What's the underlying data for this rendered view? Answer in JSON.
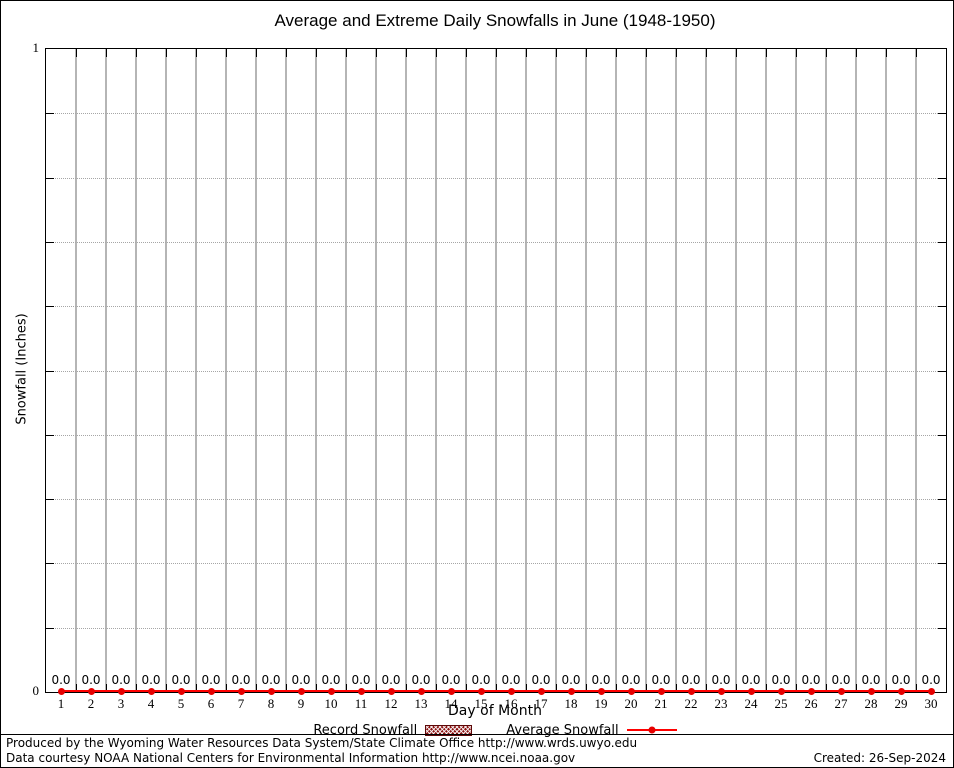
{
  "chart_data": {
    "type": "line",
    "title": "Average and Extreme Daily Snowfalls in June (1948-1950)",
    "xlabel": "Day of Month",
    "ylabel": "Snowfall (Inches)",
    "xlim": [
      0.5,
      30.5
    ],
    "ylim": [
      0,
      1
    ],
    "y_tick_interval": 0.1,
    "y_labeled_ticks": {
      "top": "1",
      "bottom": "0"
    },
    "grid": {
      "vertical": "solid gray lines at day boundaries",
      "horizontal": "dotted gray lines every 0.1"
    },
    "legend_position": "bottom-center",
    "categories": [
      1,
      2,
      3,
      4,
      5,
      6,
      7,
      8,
      9,
      10,
      11,
      12,
      13,
      14,
      15,
      16,
      17,
      18,
      19,
      20,
      21,
      22,
      23,
      24,
      25,
      26,
      27,
      28,
      29,
      30
    ],
    "series": [
      {
        "name": "Record Snowfall",
        "style": "hatched-boxes",
        "color": "#8b1111",
        "values": [
          0,
          0,
          0,
          0,
          0,
          0,
          0,
          0,
          0,
          0,
          0,
          0,
          0,
          0,
          0,
          0,
          0,
          0,
          0,
          0,
          0,
          0,
          0,
          0,
          0,
          0,
          0,
          0,
          0,
          0
        ]
      },
      {
        "name": "Average Snowfall",
        "style": "line-points",
        "color": "#ff0000",
        "values": [
          0,
          0,
          0,
          0,
          0,
          0,
          0,
          0,
          0,
          0,
          0,
          0,
          0,
          0,
          0,
          0,
          0,
          0,
          0,
          0,
          0,
          0,
          0,
          0,
          0,
          0,
          0,
          0,
          0,
          0
        ]
      }
    ],
    "value_labels": [
      "0.0",
      "0.0",
      "0.0",
      "0.0",
      "0.0",
      "0.0",
      "0.0",
      "0.0",
      "0.0",
      "0.0",
      "0.0",
      "0.0",
      "0.0",
      "0.0",
      "0.0",
      "0.0",
      "0.0",
      "0.0",
      "0.0",
      "0.0",
      "0.0",
      "0.0",
      "0.0",
      "0.0",
      "0.0",
      "0.0",
      "0.0",
      "0.0",
      "0.0",
      "0.0"
    ]
  },
  "legend": {
    "record_label": "Record Snowfall",
    "average_label": "Average Snowfall"
  },
  "footer": {
    "line1": "Produced by the Wyoming Water Resources Data System/State Climate Office http://www.wrds.uwyo.edu",
    "line2": "Data courtesy NOAA National Centers for Environmental Information http://www.ncei.noaa.gov",
    "created": "Created: 26-Sep-2024"
  },
  "colors": {
    "average_line": "#ff0000",
    "record_swatch": "#8b1111",
    "vertical_grid": "#b5b5b5",
    "horizontal_grid": "#a6a6a6"
  }
}
